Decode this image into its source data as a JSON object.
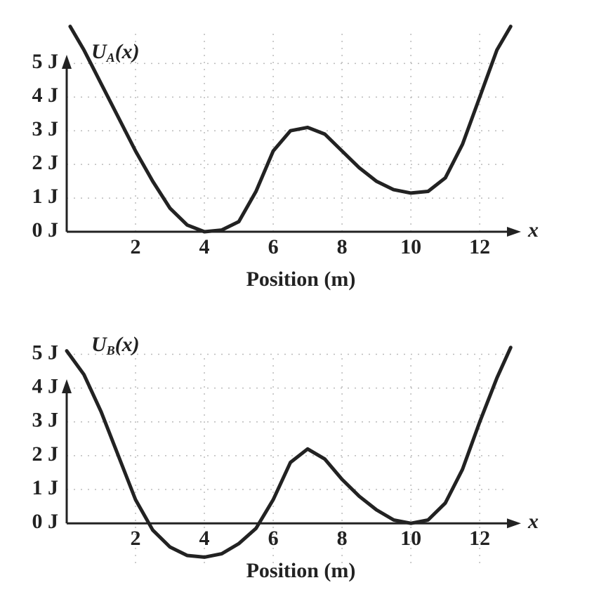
{
  "chart_data": [
    {
      "type": "line",
      "y_label": "U",
      "y_label_subscript": "A",
      "y_label_suffix": "(x)",
      "x_axis_symbol": "x",
      "x_label": "Position (m)",
      "x": [
        0.1,
        0.5,
        1,
        1.5,
        2,
        2.5,
        3,
        3.5,
        4,
        4.5,
        5,
        5.5,
        6,
        6.5,
        7,
        7.5,
        8,
        8.5,
        9,
        9.5,
        10,
        10.5,
        11,
        11.5,
        12,
        12.5,
        12.9
      ],
      "values": [
        6.1,
        5.4,
        4.4,
        3.4,
        2.4,
        1.5,
        0.7,
        0.2,
        0,
        0.05,
        0.3,
        1.2,
        2.4,
        3.0,
        3.1,
        2.9,
        2.4,
        1.9,
        1.5,
        1.25,
        1.15,
        1.2,
        1.6,
        2.6,
        4.0,
        5.4,
        6.1
      ],
      "color": "#222222",
      "xlim": [
        0,
        13.2
      ],
      "ylim": [
        0,
        6.3
      ],
      "xticks": [
        2,
        4,
        6,
        8,
        10,
        12
      ],
      "yticks": [
        {
          "value": 0,
          "label": "0 J"
        },
        {
          "value": 1,
          "label": "1 J"
        },
        {
          "value": 2,
          "label": "2 J"
        },
        {
          "value": 3,
          "label": "3 J"
        },
        {
          "value": 4,
          "label": "4 J"
        },
        {
          "value": 5,
          "label": "5 J"
        }
      ],
      "grid": true
    },
    {
      "type": "line",
      "y_label": "U",
      "y_label_subscript": "B",
      "y_label_suffix": "(x)",
      "x_axis_symbol": "x",
      "x_label": "Position (m)",
      "x": [
        0,
        0.5,
        1,
        1.5,
        2,
        2.5,
        3,
        3.5,
        4,
        4.5,
        5,
        5.5,
        6,
        6.5,
        7,
        7.5,
        8,
        8.5,
        9,
        9.5,
        10,
        10.5,
        11,
        11.5,
        12,
        12.5,
        12.9
      ],
      "values": [
        5.1,
        4.4,
        3.3,
        2.0,
        0.7,
        -0.2,
        -0.7,
        -0.95,
        -1.0,
        -0.9,
        -0.6,
        -0.15,
        0.7,
        1.8,
        2.2,
        1.9,
        1.3,
        0.8,
        0.4,
        0.1,
        0,
        0.1,
        0.6,
        1.6,
        3.0,
        4.3,
        5.2
      ],
      "color": "#222222",
      "xlim": [
        0,
        13.2
      ],
      "ylim": [
        -1.2,
        5.3
      ],
      "xticks": [
        2,
        4,
        6,
        8,
        10,
        12
      ],
      "yticks": [
        {
          "value": 0,
          "label": "0 J"
        },
        {
          "value": 1,
          "label": "1 J"
        },
        {
          "value": 2,
          "label": "2 J"
        },
        {
          "value": 3,
          "label": "3 J"
        },
        {
          "value": 4,
          "label": "4 J"
        },
        {
          "value": 5,
          "label": "5 J"
        }
      ],
      "grid": true
    }
  ]
}
